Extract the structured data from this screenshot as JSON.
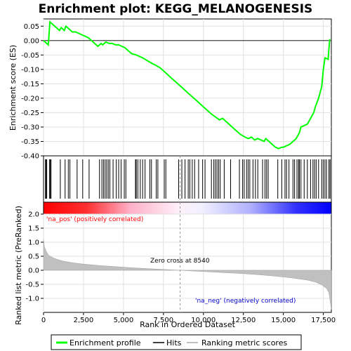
{
  "chart_data": {
    "type": "line",
    "title": "Enrichment plot: KEGG_MELANOGENESIS",
    "xlabel": "Rank in Ordered Dataset",
    "ylabel_top": "Enrichment score (ES)",
    "ylabel_bottom": "Ranked list metric (PreRanked)",
    "xlim": [
      0,
      18000
    ],
    "x_ticks": [
      0,
      2500,
      5000,
      7500,
      10000,
      12500,
      15000,
      17500
    ],
    "x_tick_labels": [
      "0",
      "2,500",
      "5,000",
      "7,500",
      "10,000",
      "12,500",
      "15,000",
      "17,500"
    ],
    "es_ylim": [
      -0.4,
      0.075
    ],
    "es_ticks": [
      0.05,
      0.0,
      -0.05,
      -0.1,
      -0.15,
      -0.2,
      -0.25,
      -0.3,
      -0.35,
      -0.4
    ],
    "es_tick_labels": [
      "0.05",
      "0.00",
      "-0.05",
      "-0.10",
      "-0.15",
      "-0.20",
      "-0.25",
      "-0.30",
      "-0.35",
      "-0.40"
    ],
    "metric_ylim": [
      -1.5,
      2.0
    ],
    "metric_ticks": [
      2.0,
      1.5,
      1.0,
      0.5,
      0.0,
      -0.5,
      -1.0
    ],
    "metric_tick_labels": [
      "2.0",
      "1.5",
      "1.0",
      "0.5",
      "0.0",
      "-0.5",
      "-1.0"
    ],
    "series": [
      {
        "name": "Enrichment profile",
        "color": "#00ff00",
        "x": [
          0,
          300,
          400,
          500,
          700,
          1000,
          1100,
          1300,
          1400,
          1600,
          1800,
          2000,
          2200,
          2400,
          2600,
          2800,
          3000,
          3200,
          3400,
          3600,
          3700,
          3900,
          4100,
          4300,
          4500,
          4700,
          4900,
          5100,
          5300,
          5500,
          5800,
          6000,
          6200,
          6500,
          6800,
          7000,
          7300,
          7600,
          8000,
          8500,
          9000,
          9500,
          10000,
          10500,
          11000,
          11200,
          11500,
          12000,
          12300,
          12600,
          12800,
          13000,
          13200,
          13400,
          13600,
          13800,
          13900,
          14100,
          14300,
          14500,
          14700,
          14900,
          15000,
          15200,
          15400,
          15600,
          15800,
          16000,
          16100,
          16300,
          16500,
          16700,
          16900,
          17000,
          17200,
          17400,
          17500,
          17600,
          17800,
          17900
        ],
        "y": [
          0.0,
          -0.015,
          0.065,
          0.06,
          0.05,
          0.035,
          0.045,
          0.035,
          0.05,
          0.04,
          0.03,
          0.03,
          0.025,
          0.02,
          0.015,
          0.01,
          0.0,
          -0.01,
          -0.02,
          -0.01,
          -0.015,
          -0.005,
          -0.01,
          -0.01,
          -0.015,
          -0.015,
          -0.02,
          -0.025,
          -0.035,
          -0.045,
          -0.05,
          -0.055,
          -0.06,
          -0.07,
          -0.08,
          -0.085,
          -0.095,
          -0.11,
          -0.13,
          -0.155,
          -0.18,
          -0.205,
          -0.23,
          -0.255,
          -0.275,
          -0.27,
          -0.285,
          -0.31,
          -0.325,
          -0.335,
          -0.34,
          -0.335,
          -0.345,
          -0.34,
          -0.345,
          -0.35,
          -0.34,
          -0.35,
          -0.36,
          -0.37,
          -0.375,
          -0.37,
          -0.37,
          -0.365,
          -0.36,
          -0.35,
          -0.34,
          -0.32,
          -0.3,
          -0.295,
          -0.29,
          -0.27,
          -0.25,
          -0.23,
          -0.2,
          -0.16,
          -0.1,
          -0.06,
          -0.065,
          0.005
        ]
      }
    ],
    "hits": [
      120,
      160,
      200,
      380,
      420,
      470,
      1050,
      1350,
      1550,
      1650,
      2100,
      2450,
      2850,
      3500,
      3650,
      3750,
      3850,
      3950,
      4050,
      4150,
      4350,
      4550,
      4700,
      4850,
      5050,
      5150,
      5750,
      5800,
      5900,
      6050,
      6200,
      6350,
      6650,
      6750,
      7050,
      7150,
      7550,
      7650,
      8450,
      8650,
      8850,
      9050,
      9150,
      9300,
      9450,
      9700,
      9950,
      10100,
      10500,
      10650,
      10750,
      10850,
      10950,
      11050,
      11300,
      11700,
      12250,
      12450,
      12550,
      12700,
      12800,
      12900,
      13100,
      13250,
      13400,
      13700,
      13850,
      13950,
      14050,
      14650,
      14900,
      15100,
      15200,
      15350,
      15600,
      15700,
      15850,
      15950,
      16000,
      16100,
      16300,
      16500,
      16700,
      16850,
      16950,
      17050,
      17200,
      17400,
      17500,
      17600,
      17700,
      17850,
      17920
    ],
    "metric_curve": {
      "x": [
        0,
        50,
        150,
        300,
        500,
        800,
        1200,
        1800,
        2500,
        3500,
        4500,
        5500,
        6500,
        7500,
        8540,
        9500,
        10500,
        11500,
        12500,
        13500,
        14500,
        15500,
        16500,
        17000,
        17400,
        17700,
        17850,
        17950,
        18000
      ],
      "y": [
        1.1,
        0.85,
        0.7,
        0.55,
        0.47,
        0.4,
        0.33,
        0.27,
        0.22,
        0.17,
        0.13,
        0.09,
        0.06,
        0.03,
        0.0,
        -0.03,
        -0.06,
        -0.09,
        -0.12,
        -0.16,
        -0.21,
        -0.27,
        -0.35,
        -0.42,
        -0.52,
        -0.65,
        -0.8,
        -1.2,
        -1.4
      ]
    },
    "annotations": {
      "pos_label": "'na_pos' (positively correlated)",
      "neg_label": "'na_neg' (negatively correlated)",
      "zero_cross": "Zero cross at 8540",
      "zero_cross_x": 8540
    },
    "legend": {
      "placement": "bottom",
      "entries": [
        {
          "label": "Enrichment profile",
          "color": "#00ff00"
        },
        {
          "label": "Hits",
          "color": "#000000"
        },
        {
          "label": "Ranking metric scores",
          "color": "#c0c0c0"
        }
      ]
    },
    "colors": {
      "positive": "#ff0000",
      "negative": "#0000ff",
      "grid": "#e0e0e0",
      "pos_label": "#ff0000",
      "neg_label": "#0000cc"
    }
  }
}
